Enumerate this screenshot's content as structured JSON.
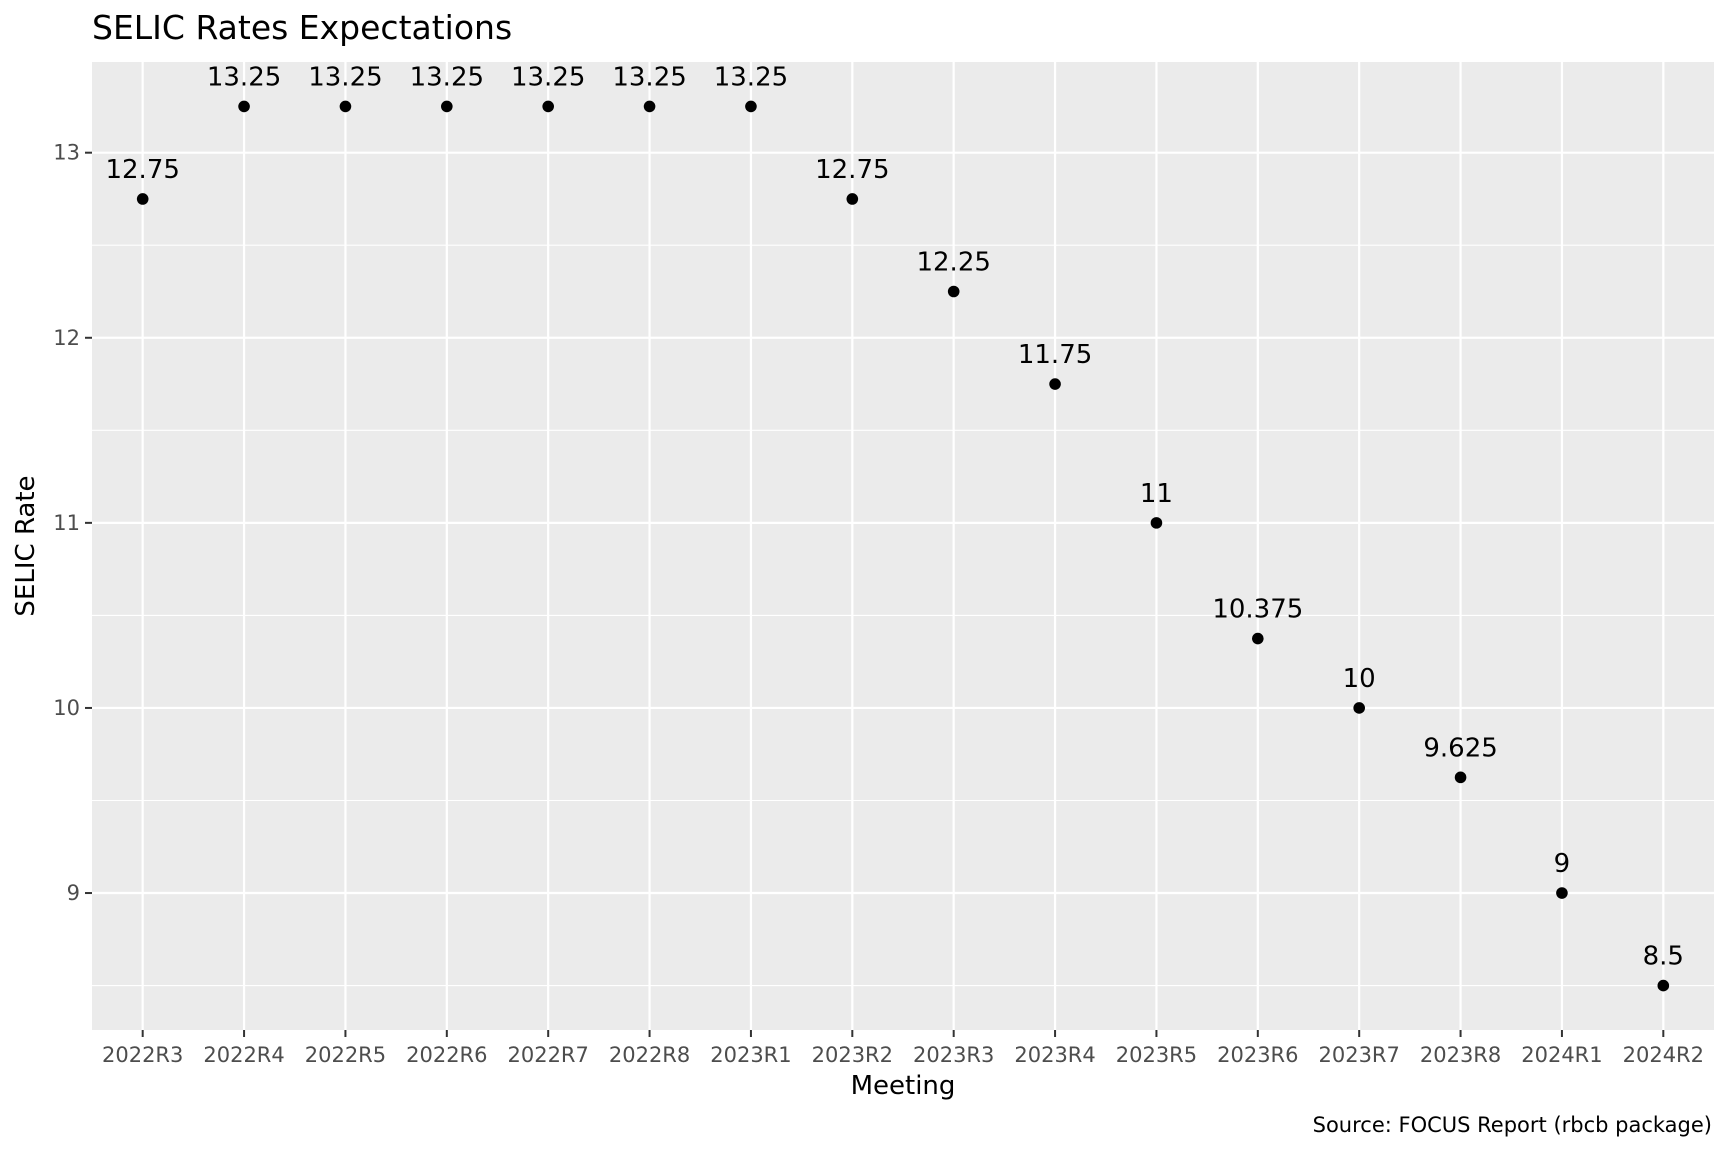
{
  "chart_data": {
    "type": "scatter",
    "title": "SELIC Rates Expectations",
    "xlabel": "Meeting",
    "ylabel": "SELIC Rate",
    "caption": "Source: FOCUS Report (rbcb package)",
    "categories": [
      "2022R3",
      "2022R4",
      "2022R5",
      "2022R6",
      "2022R7",
      "2022R8",
      "2023R1",
      "2023R2",
      "2023R3",
      "2023R4",
      "2023R5",
      "2023R6",
      "2023R7",
      "2023R8",
      "2024R1",
      "2024R2"
    ],
    "values": [
      12.75,
      13.25,
      13.25,
      13.25,
      13.25,
      13.25,
      13.25,
      12.75,
      12.25,
      11.75,
      11,
      10.375,
      10,
      9.625,
      9,
      8.5
    ],
    "labels": [
      "12.75",
      "13.25",
      "13.25",
      "13.25",
      "13.25",
      "13.25",
      "13.25",
      "12.75",
      "12.25",
      "11.75",
      "11",
      "10.375",
      "10",
      "9.625",
      "9",
      "8.5"
    ],
    "yticks": [
      "9",
      "10",
      "11",
      "12",
      "13"
    ],
    "ylim": [
      8.26,
      13.49
    ],
    "grid": true,
    "colors": {
      "panel": "#ebebeb",
      "grid": "#ffffff",
      "point": "#000000",
      "tick_text": "#4d4d4d"
    }
  }
}
